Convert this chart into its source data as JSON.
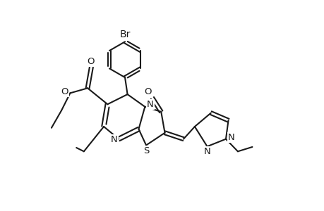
{
  "bg_color": "#ffffff",
  "line_color": "#1a1a1a",
  "line_width": 1.5,
  "font_size": 9.5,
  "figsize": [
    4.6,
    3.0
  ],
  "dpi": 100,
  "xlim": [
    0,
    10.0
  ],
  "ylim": [
    1.0,
    9.5
  ]
}
